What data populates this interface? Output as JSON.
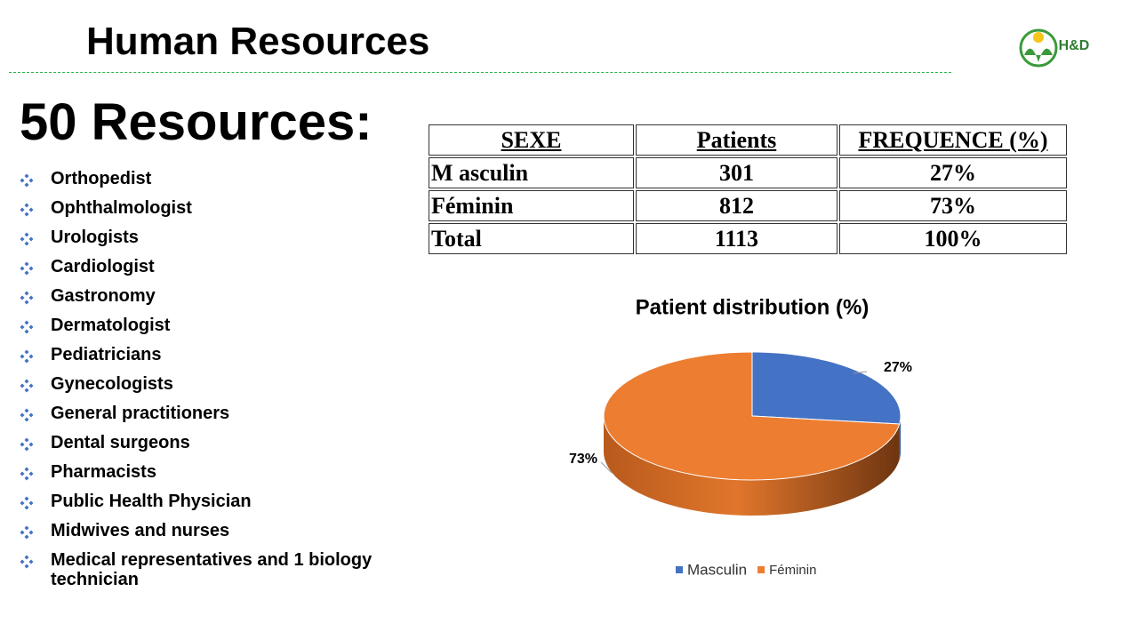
{
  "header": {
    "title": "Human Resources",
    "logo": "H&D"
  },
  "heading": "50 Resources:",
  "list": [
    "Orthopedist",
    "Ophthalmologist",
    "Urologists",
    "Cardiologist",
    "Gastronomy",
    "Dermatologist",
    "Pediatricians",
    "Gynecologists",
    "General practitioners",
    "Dental surgeons",
    "Pharmacists",
    "Public Health Physician",
    "Midwives and nurses",
    "Medical representatives and 1 biology technician"
  ],
  "table": {
    "header": [
      "SEXE",
      "Patients",
      "FREQUENCE (%)"
    ],
    "rows": [
      [
        "M asculin",
        "301",
        "27%"
      ],
      [
        "Féminin",
        "812",
        "73%"
      ],
      [
        "Total",
        "1113",
        "100%"
      ]
    ]
  },
  "chart_data": {
    "type": "pie",
    "title": "Patient distribution (%)",
    "categories": [
      "Masculin",
      "Féminin"
    ],
    "values": [
      27,
      73
    ],
    "value_labels": [
      "27%",
      "73%"
    ],
    "colors": [
      "#4472c4",
      "#ed7d31"
    ],
    "legend": "bottom"
  }
}
